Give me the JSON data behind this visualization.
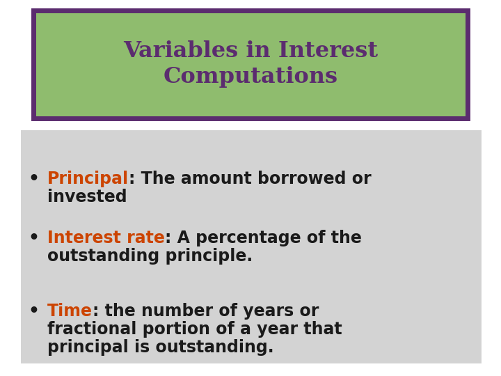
{
  "title_line1": "Variables in Interest",
  "title_line2": "Computations",
  "title_color": "#5B2C6F",
  "title_bg_color": "#8FBC6E",
  "title_border_color": "#5B2C6F",
  "slide_bg_color": "#FFFFFF",
  "content_bg_color": "#D3D3D3",
  "bullet_color": "#1a1a1a",
  "highlight_color": "#CC4400",
  "bullets": [
    {
      "highlighted": "Principal",
      "rest": ": The amount borrowed or\ninvested"
    },
    {
      "highlighted": "Interest rate",
      "rest": ": A percentage of the\noutstanding principle."
    },
    {
      "highlighted": "Time",
      "rest": ": the number of years or\nfractional portion of a year that\nprincipal is outstanding."
    }
  ],
  "figsize": [
    7.2,
    5.4
  ],
  "dpi": 100
}
